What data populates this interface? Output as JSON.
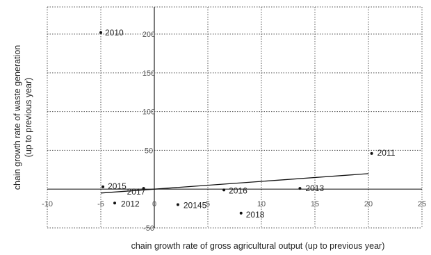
{
  "chart_data": {
    "type": "scatter",
    "xlabel": "chain growth rate of gross agricultural output (up to previous year)",
    "ylabel_lines": [
      "chain  growth  rate  of  waste  generation",
      "(up to previous year)"
    ],
    "xlim": [
      -10,
      25
    ],
    "ylim": [
      -50,
      235
    ],
    "xticks": [
      -10,
      -5,
      0,
      5,
      10,
      15,
      20,
      25
    ],
    "xtick_labels": [
      "-10",
      "-5",
      "0",
      "5",
      "10",
      "15",
      "20",
      "25"
    ],
    "yticks": [
      -50,
      50,
      100,
      150,
      200
    ],
    "ytick_labels": [
      "-50",
      "50",
      "100",
      "150",
      "200"
    ],
    "grid": true,
    "points": [
      {
        "label": "2010",
        "x": -5.0,
        "y": 202.0
      },
      {
        "label": "2011",
        "x": 20.3,
        "y": 46.0
      },
      {
        "label": "2012",
        "x": -3.7,
        "y": -18.0
      },
      {
        "label": "2013",
        "x": 13.6,
        "y": 1.0
      },
      {
        "label": "20145",
        "x": 2.2,
        "y": -20.0
      },
      {
        "label": "2015",
        "x": -4.8,
        "y": 3.0
      },
      {
        "label": "2016",
        "x": 6.5,
        "y": -1.0
      },
      {
        "label": "2017",
        "x": -1.0,
        "y": 1.0
      },
      {
        "label": "2018",
        "x": 8.1,
        "y": -31.0
      }
    ],
    "trendline": {
      "x": [
        -5,
        20
      ],
      "y": [
        -5,
        20
      ]
    }
  }
}
